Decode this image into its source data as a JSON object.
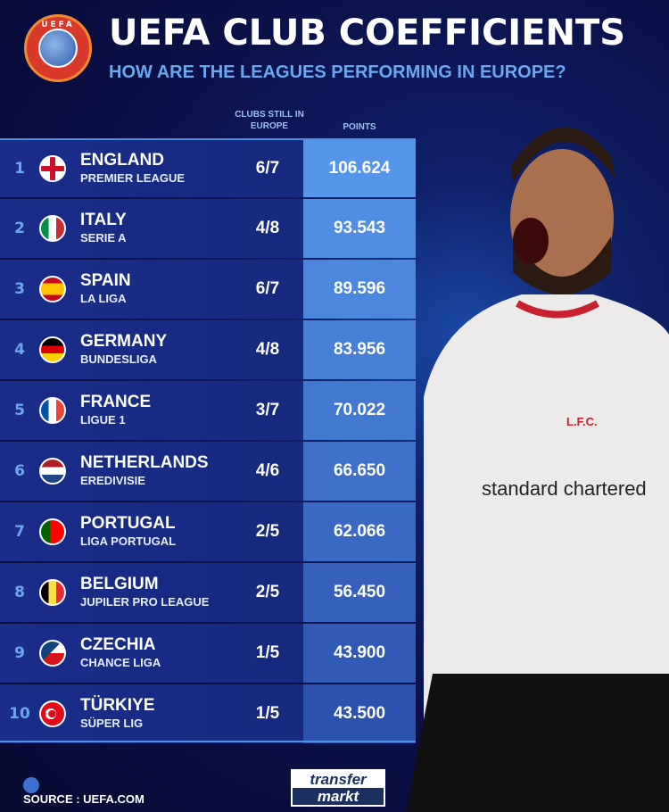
{
  "header": {
    "logo_text": "UEFA",
    "title": "UEFA CLUB COEFFICIENTS",
    "subtitle": "HOW ARE THE LEAGUES PERFORMING IN EUROPE?"
  },
  "columns": {
    "clubs": "CLUBS STILL IN EUROPE",
    "points": "POINTS"
  },
  "rows": [
    {
      "rank": "1",
      "country": "ENGLAND",
      "league": "PREMIER LEAGUE",
      "clubs": "6/7",
      "points": "106.624",
      "flag": "england"
    },
    {
      "rank": "2",
      "country": "ITALY",
      "league": "SERIE A",
      "clubs": "4/8",
      "points": "93.543",
      "flag": "italy"
    },
    {
      "rank": "3",
      "country": "SPAIN",
      "league": "LA LIGA",
      "clubs": "6/7",
      "points": "89.596",
      "flag": "spain"
    },
    {
      "rank": "4",
      "country": "GERMANY",
      "league": "BUNDESLIGA",
      "clubs": "4/8",
      "points": "83.956",
      "flag": "germany"
    },
    {
      "rank": "5",
      "country": "FRANCE",
      "league": "LIGUE 1",
      "clubs": "3/7",
      "points": "70.022",
      "flag": "france"
    },
    {
      "rank": "6",
      "country": "NETHERLANDS",
      "league": "EREDIVISIE",
      "clubs": "4/6",
      "points": "66.650",
      "flag": "netherlands"
    },
    {
      "rank": "7",
      "country": "PORTUGAL",
      "league": "LIGA PORTUGAL",
      "clubs": "2/5",
      "points": "62.066",
      "flag": "portugal"
    },
    {
      "rank": "8",
      "country": "BELGIUM",
      "league": "JUPILER PRO LEAGUE",
      "clubs": "2/5",
      "points": "56.450",
      "flag": "belgium"
    },
    {
      "rank": "9",
      "country": "CZECHIA",
      "league": "CHANCE LIGA",
      "clubs": "1/5",
      "points": "43.900",
      "flag": "czechia"
    },
    {
      "rank": "10",
      "country": "TÜRKIYE",
      "league": "SÜPER LIG",
      "clubs": "1/5",
      "points": "43.500",
      "flag": "turkiye"
    }
  ],
  "footer": {
    "source": "SOURCE : UEFA.COM",
    "brand_line1": "transfer",
    "brand_line2": "markt"
  },
  "photo": {
    "sponsor": "standard chartered",
    "crest": "L.F.C."
  },
  "colors": {
    "accent": "#6aa8ee",
    "points_top": "#5596ea",
    "points_bottom": "#2c52b0",
    "row": "#17297e"
  }
}
